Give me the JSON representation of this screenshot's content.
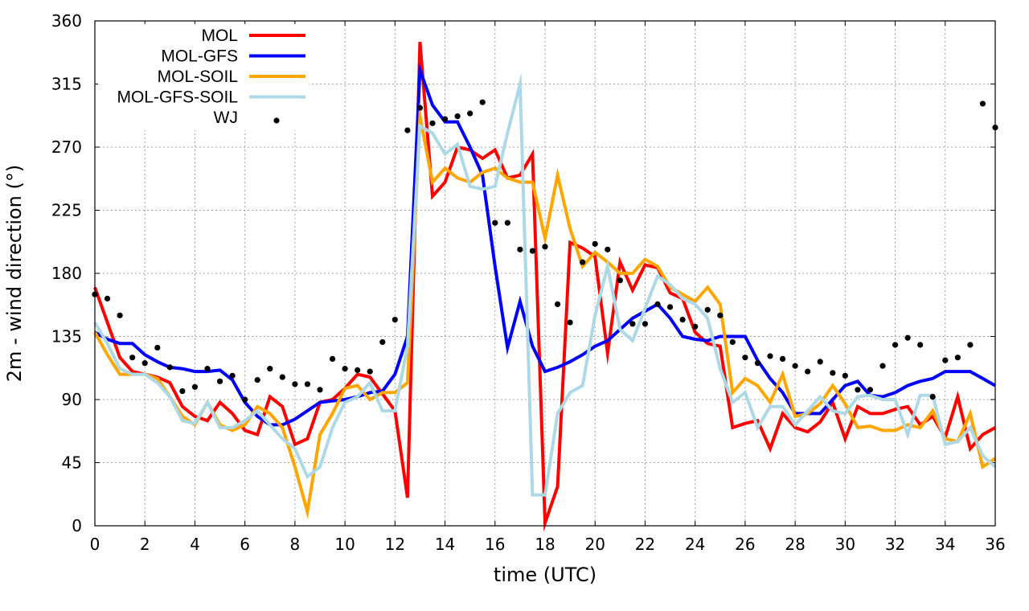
{
  "chart_data": {
    "type": "line",
    "title": "",
    "xlabel": "time (UTC)",
    "ylabel": "2m - wind direction (°)",
    "xlim": [
      0,
      36
    ],
    "ylim": [
      0,
      360
    ],
    "xticks": [
      0,
      2,
      4,
      6,
      8,
      10,
      12,
      14,
      16,
      18,
      20,
      22,
      24,
      26,
      28,
      30,
      32,
      34,
      36
    ],
    "yticks": [
      0,
      45,
      90,
      135,
      180,
      225,
      270,
      315,
      360
    ],
    "grid": true,
    "legend_position": "top-left",
    "series": [
      {
        "name": "MOL",
        "color": "#ff0000",
        "x": [
          0,
          0.5,
          1,
          1.5,
          2,
          2.5,
          3,
          3.5,
          4,
          4.5,
          5,
          5.5,
          6,
          6.5,
          7,
          7.5,
          8,
          8.5,
          9,
          9.5,
          10,
          10.5,
          11,
          11.5,
          12,
          12.5,
          13,
          13.5,
          14,
          14.5,
          15,
          15.5,
          16,
          16.5,
          17,
          17.5,
          18,
          18.5,
          19,
          19.5,
          20,
          20.5,
          21,
          21.5,
          22,
          22.5,
          23,
          23.5,
          24,
          24.5,
          25,
          25.5,
          26,
          26.5,
          27,
          27.5,
          28,
          28.5,
          29,
          29.5,
          30,
          30.5,
          31,
          31.5,
          32,
          32.5,
          33,
          33.5,
          34,
          34.5,
          35,
          35.5,
          36
        ],
        "y": [
          170,
          145,
          120,
          110,
          108,
          106,
          102,
          85,
          78,
          75,
          88,
          80,
          68,
          65,
          92,
          85,
          58,
          62,
          88,
          90,
          98,
          108,
          106,
          94,
          82,
          20,
          345,
          235,
          245,
          270,
          268,
          262,
          268,
          248,
          250,
          265,
          2,
          28,
          202,
          198,
          192,
          123,
          188,
          168,
          186,
          184,
          166,
          162,
          138,
          130,
          128,
          70,
          73,
          75,
          55,
          80,
          70,
          67,
          74,
          88,
          62,
          85,
          80,
          80,
          83,
          85,
          72,
          78,
          63,
          92,
          55,
          65,
          70
        ]
      },
      {
        "name": "MOL-GFS",
        "color": "#0000ff",
        "x": [
          0,
          0.5,
          1,
          1.5,
          2,
          2.5,
          3,
          3.5,
          4,
          4.5,
          5,
          5.5,
          6,
          6.5,
          7,
          7.5,
          8,
          8.5,
          9,
          9.5,
          10,
          10.5,
          11,
          11.5,
          12,
          12.5,
          13,
          13.5,
          14,
          14.5,
          15,
          15.5,
          16,
          16.5,
          17,
          17.5,
          18,
          18.5,
          19,
          19.5,
          20,
          20.5,
          21,
          21.5,
          22,
          22.5,
          23,
          23.5,
          24,
          24.5,
          25,
          25.5,
          26,
          26.5,
          27,
          27.5,
          28,
          28.5,
          29,
          29.5,
          30,
          30.5,
          31,
          31.5,
          32,
          32.5,
          33,
          33.5,
          34,
          34.5,
          35,
          35.5,
          36
        ],
        "y": [
          138,
          133,
          130,
          130,
          122,
          117,
          113,
          112,
          110,
          110,
          111,
          104,
          88,
          78,
          72,
          72,
          76,
          82,
          88,
          89,
          90,
          92,
          95,
          96,
          108,
          135,
          325,
          300,
          288,
          288,
          270,
          250,
          185,
          127,
          160,
          128,
          110,
          113,
          117,
          122,
          128,
          132,
          140,
          148,
          153,
          158,
          148,
          135,
          133,
          132,
          135,
          135,
          135,
          118,
          105,
          95,
          80,
          80,
          80,
          90,
          100,
          103,
          93,
          92,
          95,
          100,
          103,
          105,
          110,
          110,
          110,
          105,
          100
        ]
      },
      {
        "name": "MOL-SOIL",
        "color": "#ffa500",
        "x": [
          0,
          0.5,
          1,
          1.5,
          2,
          2.5,
          3,
          3.5,
          4,
          4.5,
          5,
          5.5,
          6,
          6.5,
          7,
          7.5,
          8,
          8.5,
          9,
          9.5,
          10,
          10.5,
          11,
          11.5,
          12,
          12.5,
          13,
          13.5,
          14,
          14.5,
          15,
          15.5,
          16,
          16.5,
          17,
          17.5,
          18,
          18.5,
          19,
          19.5,
          20,
          20.5,
          21,
          21.5,
          22,
          22.5,
          23,
          23.5,
          24,
          24.5,
          25,
          25.5,
          26,
          26.5,
          27,
          27.5,
          28,
          28.5,
          29,
          29.5,
          30,
          30.5,
          31,
          31.5,
          32,
          32.5,
          33,
          33.5,
          34,
          34.5,
          35,
          35.5,
          36
        ],
        "y": [
          138,
          122,
          108,
          108,
          108,
          105,
          92,
          78,
          72,
          88,
          72,
          68,
          72,
          85,
          80,
          70,
          42,
          10,
          65,
          80,
          98,
          100,
          90,
          95,
          95,
          102,
          292,
          245,
          255,
          248,
          245,
          252,
          255,
          248,
          245,
          245,
          205,
          250,
          212,
          185,
          195,
          188,
          180,
          180,
          190,
          185,
          170,
          165,
          160,
          170,
          158,
          95,
          105,
          100,
          88,
          108,
          78,
          80,
          87,
          100,
          87,
          70,
          71,
          68,
          68,
          72,
          70,
          82,
          62,
          60,
          80,
          42,
          48
        ]
      },
      {
        "name": "MOL-GFS-SOIL",
        "color": "#add8e6",
        "x": [
          0,
          0.5,
          1,
          1.5,
          2,
          2.5,
          3,
          3.5,
          4,
          4.5,
          5,
          5.5,
          6,
          6.5,
          7,
          7.5,
          8,
          8.5,
          9,
          9.5,
          10,
          10.5,
          11,
          11.5,
          12,
          12.5,
          13,
          13.5,
          14,
          14.5,
          15,
          15.5,
          16,
          16.5,
          17,
          17.5,
          18,
          18.5,
          19,
          19.5,
          20,
          20.5,
          21,
          21.5,
          22,
          22.5,
          23,
          23.5,
          24,
          24.5,
          25,
          25.5,
          26,
          26.5,
          27,
          27.5,
          28,
          28.5,
          29,
          29.5,
          30,
          30.5,
          31,
          31.5,
          32,
          32.5,
          33,
          33.5,
          34,
          34.5,
          35,
          35.5,
          36
        ],
        "y": [
          145,
          130,
          112,
          108,
          108,
          102,
          92,
          75,
          73,
          88,
          70,
          70,
          75,
          82,
          72,
          62,
          55,
          35,
          42,
          70,
          88,
          92,
          102,
          82,
          82,
          128,
          285,
          280,
          265,
          272,
          242,
          240,
          242,
          280,
          315,
          22,
          22,
          80,
          95,
          100,
          150,
          185,
          140,
          132,
          155,
          178,
          172,
          162,
          158,
          148,
          112,
          88,
          95,
          70,
          85,
          85,
          72,
          82,
          92,
          82,
          80,
          92,
          93,
          90,
          90,
          65,
          93,
          93,
          58,
          60,
          70,
          50,
          42
        ]
      }
    ],
    "points": {
      "name": "WJ",
      "color": "#000000",
      "x": [
        0,
        0.5,
        1,
        1.5,
        2,
        2.5,
        3,
        3.5,
        4,
        4.5,
        5,
        5.5,
        6,
        6.5,
        7,
        7.5,
        8,
        8.5,
        9,
        9.5,
        10,
        10.5,
        11,
        11.5,
        12,
        12.5,
        13,
        13.5,
        14,
        14.5,
        15,
        15.5,
        16,
        16.5,
        17,
        17.5,
        18,
        18.5,
        19,
        19.5,
        20,
        20.5,
        21,
        21.5,
        22,
        22.5,
        23,
        23.5,
        24,
        24.5,
        25,
        25.5,
        26,
        26.5,
        27,
        27.5,
        28,
        28.5,
        29,
        29.5,
        30,
        30.5,
        31,
        31.5,
        32,
        32.5,
        33,
        33.5,
        34,
        34.5,
        35,
        35.5,
        36
      ],
      "y": [
        165,
        162,
        150,
        120,
        116,
        127,
        113,
        96,
        99,
        112,
        103,
        107,
        90,
        104,
        112,
        106,
        101,
        101,
        97,
        119,
        112,
        111,
        110,
        131,
        147,
        282,
        298,
        287,
        290,
        292,
        294,
        302,
        216,
        216,
        197,
        196,
        199,
        158,
        145,
        188,
        201,
        197,
        175,
        144,
        144,
        158,
        156,
        147,
        142,
        154,
        150,
        131,
        120,
        116,
        121,
        119,
        114,
        110,
        117,
        109,
        107,
        97,
        97,
        114,
        129,
        134,
        129,
        92,
        118,
        120,
        129,
        301,
        284
      ]
    }
  }
}
